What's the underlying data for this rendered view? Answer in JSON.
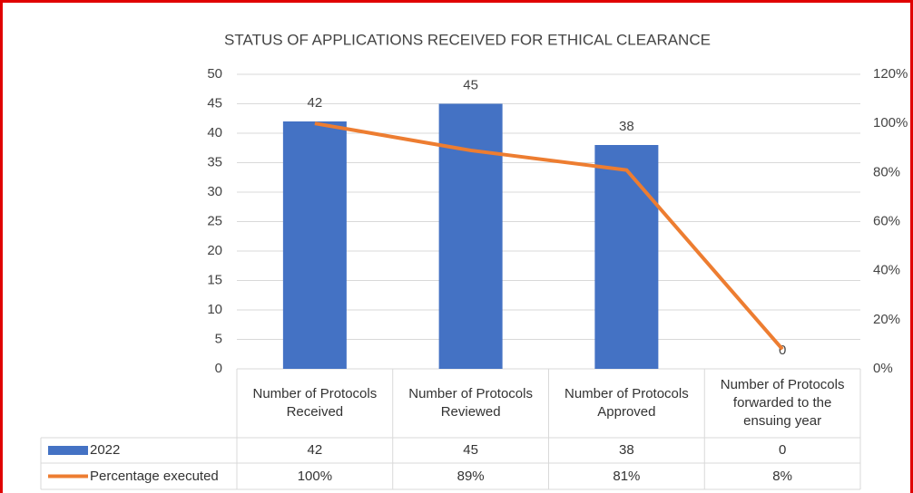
{
  "chart_data": {
    "type": "bar",
    "title": "STATUS OF APPLICATIONS RECEIVED FOR ETHICAL CLEARANCE",
    "categories": [
      "Number of Protocols Received",
      "Number of Protocols Reviewed",
      "Number of Protocols Approved",
      "Number of Protocols forwarded to the ensuing year"
    ],
    "series": [
      {
        "name": "2022",
        "type": "bar",
        "color": "#4472c4",
        "values": [
          42,
          45,
          38,
          0
        ]
      },
      {
        "name": "Percentage executed",
        "type": "line",
        "axis": "y2",
        "color": "#ed7d31",
        "values": [
          100,
          89,
          81,
          8
        ],
        "value_labels": [
          "100%",
          "89%",
          "81%",
          "8%"
        ]
      }
    ],
    "ylim": [
      0,
      50
    ],
    "yticks": [
      0,
      5,
      10,
      15,
      20,
      25,
      30,
      35,
      40,
      45,
      50
    ],
    "y2lim": [
      0,
      120
    ],
    "y2ticks": [
      {
        "value": 0,
        "label": "0%"
      },
      {
        "value": 20,
        "label": "20%"
      },
      {
        "value": 40,
        "label": "40%"
      },
      {
        "value": 60,
        "label": "60%"
      },
      {
        "value": 80,
        "label": "80%"
      },
      {
        "value": 100,
        "label": "100%"
      },
      {
        "value": 120,
        "label": "120%"
      }
    ],
    "grid": true,
    "data_table": true
  }
}
